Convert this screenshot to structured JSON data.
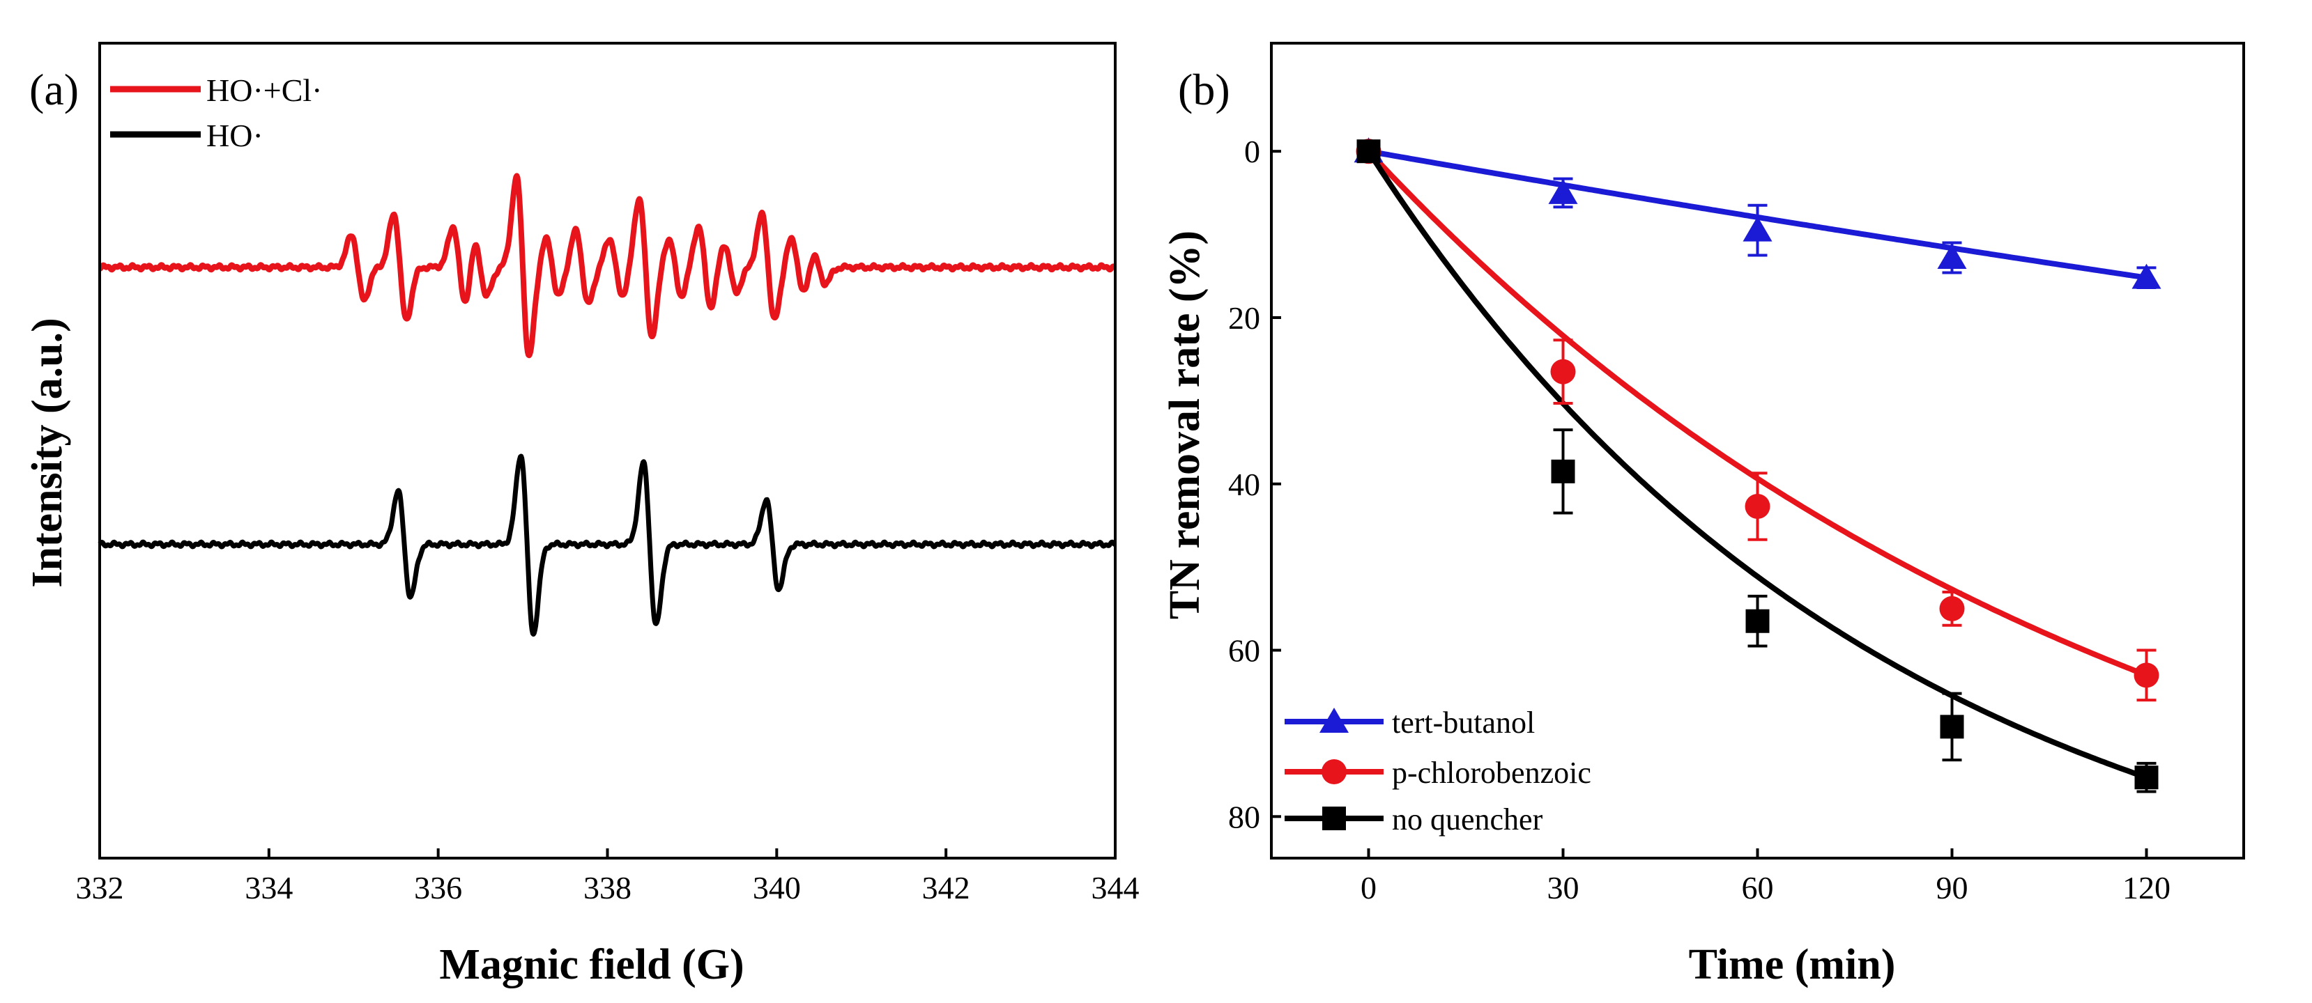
{
  "chart_data": [
    {
      "panel": "(a)",
      "type": "line",
      "title": "",
      "xlabel": "Magnic field (G)",
      "ylabel": "Intensity (a.u.)",
      "xlim": [
        332,
        344
      ],
      "xticks": [
        332,
        334,
        336,
        338,
        340,
        342,
        344
      ],
      "ylim": [
        -1,
        1
      ],
      "grid": false,
      "legend_position": "top-left",
      "series": [
        {
          "name": "HO·+Cl·",
          "color": "#e8141c",
          "offset": 0.45,
          "description": "EPR spectrum with quartet plus additional hyperfine lines",
          "peaks": [
            {
              "center": 335.05,
              "amp": 0.08
            },
            {
              "center": 335.55,
              "amp": 0.13
            },
            {
              "center": 336.25,
              "amp": 0.1
            },
            {
              "center": 336.5,
              "amp": 0.07
            },
            {
              "center": 337.0,
              "amp": 0.22
            },
            {
              "center": 337.35,
              "amp": 0.07
            },
            {
              "center": 337.7,
              "amp": 0.09
            },
            {
              "center": 338.1,
              "amp": 0.07
            },
            {
              "center": 338.45,
              "amp": 0.17
            },
            {
              "center": 338.8,
              "amp": 0.07
            },
            {
              "center": 339.15,
              "amp": 0.1
            },
            {
              "center": 339.45,
              "amp": 0.06
            },
            {
              "center": 339.9,
              "amp": 0.13
            },
            {
              "center": 340.25,
              "amp": 0.07
            },
            {
              "center": 340.5,
              "amp": 0.04
            }
          ]
        },
        {
          "name": "HO·",
          "color": "#000000",
          "offset": -0.23,
          "description": "DMPO-OH 1:2:2:1 quartet",
          "peaks": [
            {
              "center": 335.6,
              "amp": 0.13
            },
            {
              "center": 337.05,
              "amp": 0.22
            },
            {
              "center": 338.5,
              "amp": 0.2
            },
            {
              "center": 339.95,
              "amp": 0.11
            }
          ]
        }
      ]
    },
    {
      "panel": "(b)",
      "type": "line",
      "title": "",
      "xlabel": "Time (min)",
      "ylabel": "TN removal rate (%)",
      "xlim": [
        -15,
        135
      ],
      "xticks": [
        0,
        30,
        60,
        90,
        120
      ],
      "ylim": [
        -13,
        85
      ],
      "yticks": [
        0,
        20,
        40,
        60,
        80
      ],
      "y_inverted": true,
      "grid": false,
      "legend_position": "bottom-left",
      "x": [
        0,
        30,
        60,
        90,
        120
      ],
      "series": [
        {
          "name": "tert-butanol",
          "color": "#1b1bd6",
          "marker": "triangle",
          "values": [
            0,
            5,
            9.5,
            12.8,
            15.2
          ],
          "errors": [
            0,
            1.7,
            3,
            1.8,
            1.2
          ],
          "fit_k": 0.00145
        },
        {
          "name": "p-chlorobenzoic",
          "color": "#e8141c",
          "marker": "circle",
          "values": [
            0,
            26.5,
            42.7,
            55,
            63
          ],
          "errors": [
            0,
            3.8,
            4,
            2,
            3
          ],
          "fit_k": 0.0085
        },
        {
          "name": "no quencher",
          "color": "#000000",
          "marker": "square",
          "values": [
            0,
            38.5,
            56.5,
            69.2,
            75.3
          ],
          "errors": [
            0,
            5,
            3,
            4,
            1.7
          ],
          "fit_k": 0.0125
        }
      ]
    }
  ]
}
